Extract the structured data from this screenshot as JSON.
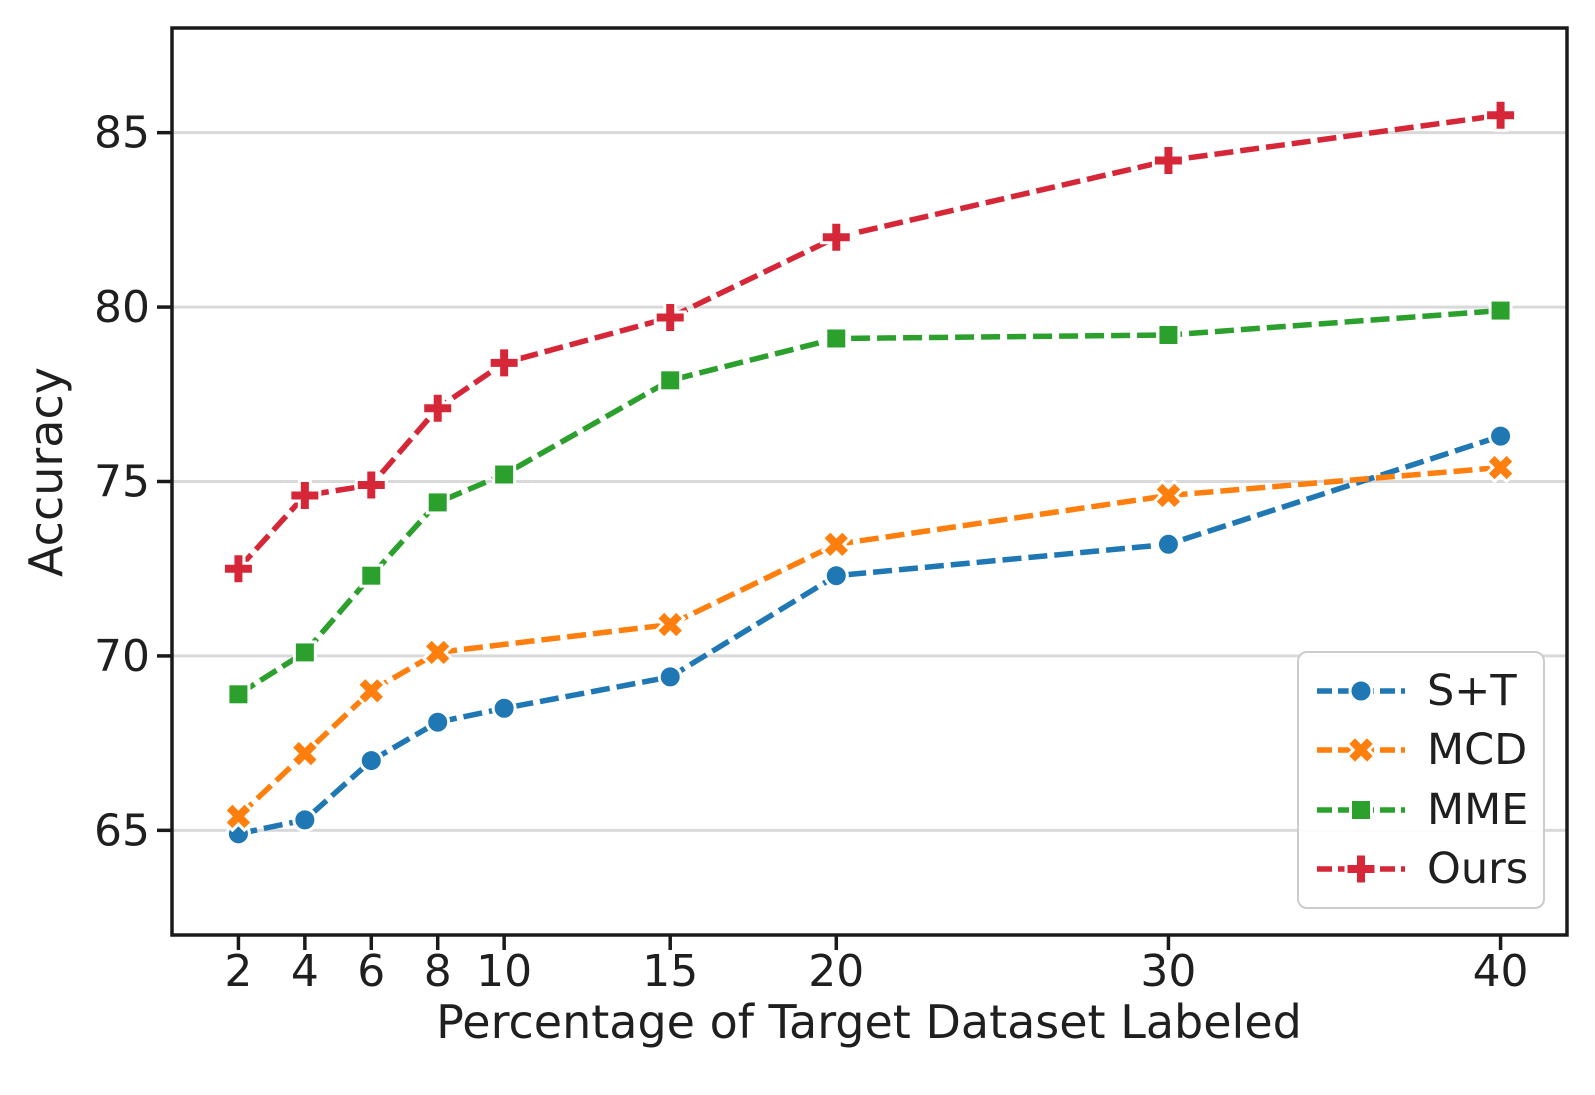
{
  "figure": {
    "background": "#ffffff",
    "text_color": "#1f1f1f",
    "grid_color": "#d9d9d9",
    "spine_color": "#1a1a1a",
    "legend_border_color": "#cccccc"
  },
  "chart_data": {
    "type": "line",
    "title": "",
    "xlabel": "Percentage of Target Dataset Labeled",
    "ylabel": "Accuracy",
    "xlim": [
      0,
      42
    ],
    "ylim": [
      62,
      88
    ],
    "xticks": [
      2,
      4,
      6,
      8,
      10,
      15,
      20,
      30,
      40
    ],
    "yticks": [
      65,
      70,
      75,
      80,
      85
    ],
    "grid": "horizontal",
    "legend_position": "lower right",
    "series": [
      {
        "name": "S+T",
        "color": "#1f77b4",
        "marker": "circle",
        "linestyle": "dashed",
        "x": [
          2,
          4,
          6,
          8,
          10,
          15,
          20,
          30,
          40
        ],
        "y": [
          64.9,
          65.3,
          67.0,
          68.1,
          68.5,
          69.4,
          72.3,
          73.2,
          76.3
        ]
      },
      {
        "name": "MCD",
        "color": "#ff7f0e",
        "marker": "x",
        "linestyle": "dashed",
        "x": [
          2,
          4,
          6,
          8,
          15,
          20,
          30,
          40
        ],
        "y": [
          65.4,
          67.2,
          69.0,
          70.1,
          70.9,
          73.2,
          74.6,
          75.4
        ]
      },
      {
        "name": "MME",
        "color": "#2ca02c",
        "marker": "square",
        "linestyle": "dashed",
        "x": [
          2,
          4,
          6,
          8,
          10,
          15,
          20,
          30,
          40
        ],
        "y": [
          68.9,
          70.1,
          72.3,
          74.4,
          75.2,
          77.9,
          79.1,
          79.2,
          79.9
        ]
      },
      {
        "name": "Ours",
        "color": "#d62738",
        "marker": "plus",
        "linestyle": "dashed",
        "x": [
          2,
          4,
          6,
          8,
          10,
          15,
          20,
          30,
          40
        ],
        "y": [
          72.5,
          74.6,
          74.9,
          77.1,
          78.4,
          79.7,
          82.0,
          84.2,
          85.5
        ]
      }
    ]
  },
  "legend": {
    "entries": [
      "S+T",
      "MCD",
      "MME",
      "Ours"
    ]
  }
}
